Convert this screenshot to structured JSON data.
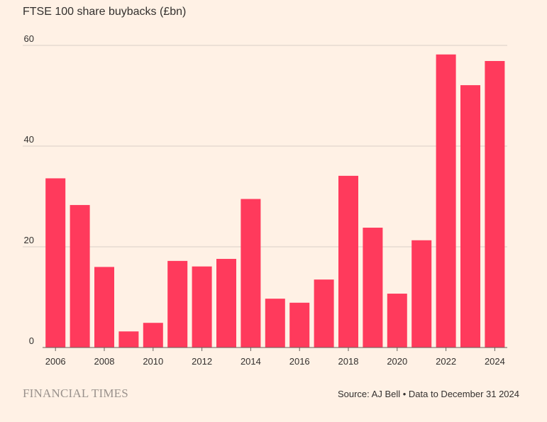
{
  "header": {
    "title": "FTSE 100 share buybacks (£bn)"
  },
  "footer": {
    "logo_text": "FINANCIAL TIMES",
    "source": "Source: AJ Bell • Data to December 31 2024"
  },
  "colors": {
    "bar": "#ff3a5c",
    "grid": "#d9cfc7",
    "axis": "#66605c",
    "text": "#33302e"
  },
  "chart_data": {
    "type": "bar",
    "title": "FTSE 100 share buybacks (£bn)",
    "xlabel": "",
    "ylabel": "",
    "categories": [
      "2006",
      "2007",
      "2008",
      "2009",
      "2010",
      "2011",
      "2012",
      "2013",
      "2014",
      "2015",
      "2016",
      "2017",
      "2018",
      "2019",
      "2020",
      "2021",
      "2022",
      "2023",
      "2024"
    ],
    "values": [
      33.6,
      28.3,
      16.0,
      3.2,
      4.9,
      17.2,
      16.1,
      17.6,
      29.5,
      9.7,
      8.9,
      13.5,
      34.1,
      23.8,
      10.7,
      21.3,
      58.2,
      52.1,
      56.9
    ],
    "ylim": [
      0,
      60
    ],
    "yticks": [
      0,
      20,
      40,
      60
    ],
    "xtick_labels": [
      "2006",
      "2008",
      "2010",
      "2012",
      "2014",
      "2016",
      "2018",
      "2020",
      "2022",
      "2024"
    ],
    "grid": true
  }
}
